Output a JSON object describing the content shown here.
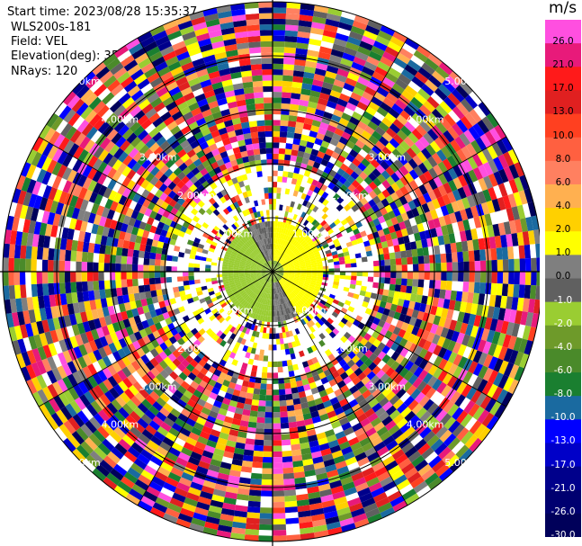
{
  "header": {
    "start_time": "Start time: 2023/08/28 15:35:37",
    "instrument": "WLS200s-181",
    "field": "Field: VEL",
    "elevation": "Elevation(deg): 35.30",
    "nrays": "NRays: 120"
  },
  "chart_data": {
    "type": "heatmap",
    "projection": "polar-ppi",
    "field": "VEL",
    "n_rays": 120,
    "range_rings": [
      "1.00km",
      "2.00km",
      "3.00km",
      "4.00km",
      "5.00km"
    ],
    "colorbar": {
      "unit": "m/s",
      "ticks": [
        "26.0",
        "21.0",
        "17.0",
        "13.0",
        "10.0",
        "8.0",
        "6.0",
        "4.0",
        "2.0",
        "1.0",
        "0.0",
        "-1.0",
        "-2.0",
        "-4.0",
        "-6.0",
        "-8.0",
        "-10.0",
        "-13.0",
        "-17.0",
        "-21.0",
        "-26.0",
        "-30.0"
      ],
      "colors": [
        "#ff4fe0",
        "#e81a7a",
        "#ff1a1a",
        "#e02020",
        "#ff4020",
        "#ff6040",
        "#ff8060",
        "#ffb050",
        "#ffd000",
        "#ffff00",
        "#7f7f7f",
        "#606060",
        "#9acd32",
        "#6e9a2a",
        "#4a8a2a",
        "#1a7f30",
        "#1a6aa0",
        "#0000ff",
        "#0000c8",
        "#00008b",
        "#000070",
        "#00005a"
      ]
    }
  }
}
